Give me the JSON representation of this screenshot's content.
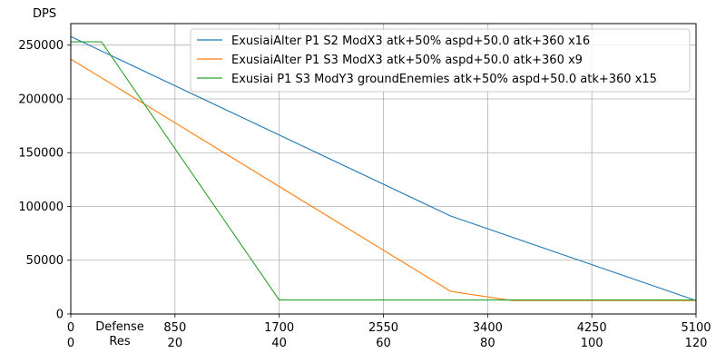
{
  "chart_data": {
    "type": "line",
    "title": "",
    "ylabel": "DPS",
    "xlabel_lines": [
      "Defense",
      "Res"
    ],
    "xlim": [
      0,
      5100
    ],
    "ylim": [
      0,
      270000
    ],
    "grid": true,
    "legend_position": "top-right",
    "x_ticks": [
      0,
      850,
      1700,
      2550,
      3400,
      4250,
      5100
    ],
    "x_ticks_secondary": [
      "0",
      "20",
      "40",
      "60",
      "80",
      "100",
      "120"
    ],
    "y_ticks": [
      0,
      50000,
      100000,
      150000,
      200000,
      250000
    ],
    "series": [
      {
        "name": "ExusiaiAlter P1 S2 ModX3 atk+50% aspd+50.0 atk+360 x16",
        "color": "#1f77b4",
        "x": [
          0,
          3100,
          5100
        ],
        "y": [
          258000,
          91000,
          12500
        ]
      },
      {
        "name": "ExusiaiAlter P1 S3 ModX3 atk+50% aspd+50.0 atk+360 x9",
        "color": "#ff7f0e",
        "x": [
          0,
          3100,
          3600,
          5100
        ],
        "y": [
          237000,
          21000,
          12500,
          12500
        ]
      },
      {
        "name": "Exusiai P1 S3 ModY3 groundEnemies atk+50% aspd+50.0 atk+360 x15",
        "color": "#2ca02c",
        "x": [
          0,
          250,
          1700,
          5100
        ],
        "y": [
          253000,
          253000,
          13000,
          13000
        ]
      }
    ]
  }
}
